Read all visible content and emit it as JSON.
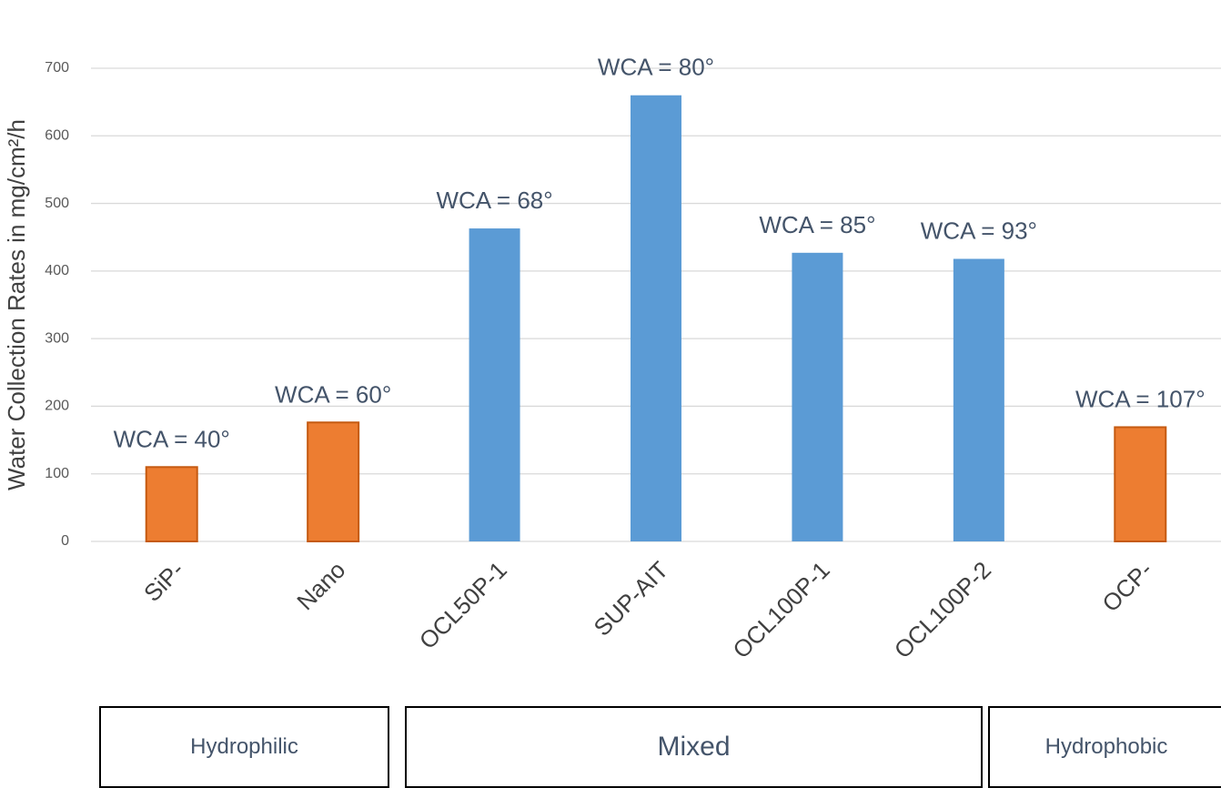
{
  "chart_data": {
    "type": "bar",
    "ylabel": "Water Collection Rates in mg/cm²/h",
    "ylim": [
      0,
      700
    ],
    "yticks": [
      0,
      100,
      200,
      300,
      400,
      500,
      600,
      700
    ],
    "grid": true,
    "categories": [
      "SiP-",
      "Nano",
      "OCL50P-1",
      "SUP-AIT",
      "OCL100P-1",
      "OCL100P-2",
      "OCP-"
    ],
    "values": [
      110,
      176,
      463,
      660,
      427,
      418,
      169
    ],
    "annotations": [
      "WCA = 40°",
      "WCA = 60°",
      "WCA = 68°",
      "WCA = 80°",
      "WCA = 85°",
      "WCA = 93°",
      "WCA = 107°"
    ],
    "bar_groups": [
      "Hydrophilic",
      "Hydrophilic",
      "Mixed",
      "Mixed",
      "Mixed",
      "Mixed",
      "Hydrophobic"
    ],
    "colors": {
      "Hydrophilic": "#ED7D31",
      "Mixed": "#5B9BD5",
      "Hydrophobic": "#ED7D31"
    },
    "group_labels": [
      "Hydrophilic",
      "Mixed",
      "Hydrophobic"
    ]
  }
}
